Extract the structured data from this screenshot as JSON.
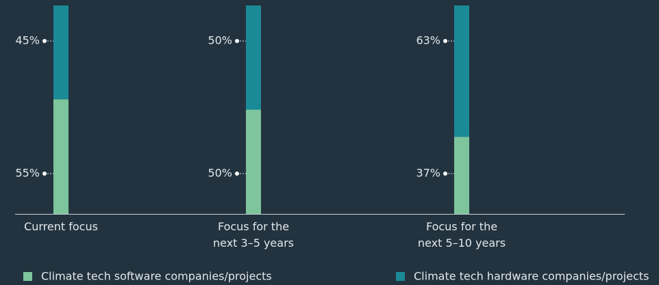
{
  "chart_data": {
    "type": "stacked_bar",
    "categories": [
      [
        "Current focus"
      ],
      [
        "Focus for the",
        "next 3–5 years"
      ],
      [
        "Focus for the",
        "next 5–10 years"
      ]
    ],
    "series": [
      {
        "name": "Climate tech software companies/projects",
        "color": "#7ec49c",
        "values": [
          55,
          50,
          37
        ],
        "value_labels": [
          "55%",
          "50%",
          "37%"
        ]
      },
      {
        "name": "Climate tech hardware companies/projects",
        "color": "#1a8a96",
        "values": [
          45,
          50,
          63
        ],
        "value_labels": [
          "45%",
          "50%",
          "63%"
        ]
      }
    ],
    "ylim": [
      0,
      100
    ]
  }
}
